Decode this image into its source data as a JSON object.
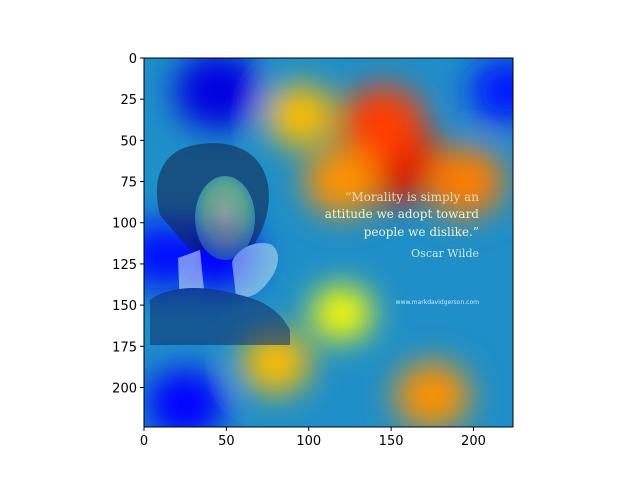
{
  "chart_data": {
    "type": "heatmap",
    "title": "",
    "xlabel": "",
    "ylabel": "",
    "x_ticks": [
      0,
      50,
      100,
      150,
      200
    ],
    "y_ticks": [
      0,
      25,
      50,
      75,
      100,
      125,
      150,
      175,
      200
    ],
    "xlim": [
      0,
      224
    ],
    "ylim": [
      224,
      0
    ],
    "colormap": "jet",
    "overlay_image": {
      "quote": "“Morality is simply an attitude we adopt toward people we dislike.”",
      "quote_lines": [
        "“Morality is simply an",
        "attitude we adopt toward",
        "people we dislike.”"
      ],
      "author": "Oscar Wilde",
      "url": "www.markdavidgerson.com"
    },
    "hotspots": [
      {
        "x": 150,
        "y": 62,
        "intensity": 1.0
      },
      {
        "x": 145,
        "y": 40,
        "intensity": 0.75
      },
      {
        "x": 195,
        "y": 75,
        "intensity": 0.6
      },
      {
        "x": 120,
        "y": 75,
        "intensity": 0.55
      },
      {
        "x": 95,
        "y": 35,
        "intensity": 0.45
      },
      {
        "x": 175,
        "y": 205,
        "intensity": 0.55
      },
      {
        "x": 80,
        "y": 185,
        "intensity": 0.45
      },
      {
        "x": 120,
        "y": 155,
        "intensity": 0.3
      }
    ],
    "coldspots": [
      {
        "x": 45,
        "y": 20,
        "intensity": 0.7
      },
      {
        "x": 45,
        "y": 120,
        "intensity": 0.5
      },
      {
        "x": 10,
        "y": 120,
        "intensity": 0.4
      },
      {
        "x": 220,
        "y": 20,
        "intensity": 0.35
      },
      {
        "x": 25,
        "y": 210,
        "intensity": 0.5
      }
    ]
  }
}
